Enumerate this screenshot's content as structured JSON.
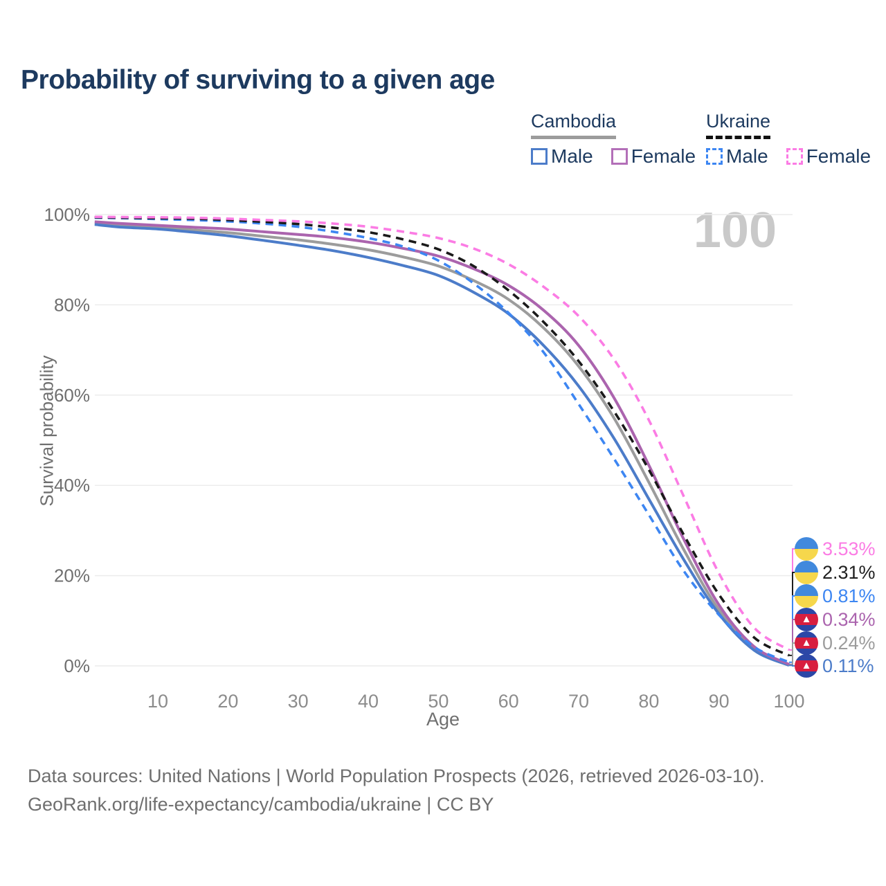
{
  "title": "Probability of surviving to a given age",
  "watermark": "100",
  "legend": {
    "groups": [
      {
        "name": "Cambodia",
        "underline_style": "solid",
        "underline_color": "#9c9c9c",
        "items": [
          {
            "label": "Male",
            "color": "#4c7cc9",
            "dashed": false
          },
          {
            "label": "Female",
            "color": "#b36fb8",
            "dashed": false
          }
        ]
      },
      {
        "name": "Ukraine",
        "underline_style": "dashed",
        "underline_color": "#111111",
        "items": [
          {
            "label": "Male",
            "color": "#3d86f2",
            "dashed": true
          },
          {
            "label": "Female",
            "color": "#fb7ce4",
            "dashed": true
          }
        ]
      }
    ]
  },
  "chart_data": {
    "type": "line",
    "title": "Probability of surviving to a given age",
    "xlabel": "Age",
    "ylabel": "Survival probability",
    "x_ticks": [
      10,
      20,
      30,
      40,
      50,
      60,
      70,
      80,
      90,
      100
    ],
    "y_ticks": [
      0,
      20,
      40,
      60,
      80,
      100
    ],
    "y_tick_suffix": "%",
    "xlim": [
      1,
      100
    ],
    "ylim": [
      0,
      100
    ],
    "grid": "horizontal",
    "gridline_color": "#ececec",
    "x": [
      1,
      5,
      10,
      15,
      20,
      25,
      30,
      35,
      40,
      45,
      50,
      55,
      60,
      65,
      70,
      75,
      80,
      85,
      90,
      95,
      100
    ],
    "series": [
      {
        "name": "Cambodia Both",
        "country": "Cambodia",
        "color": "#9c9c9c",
        "dashed": false,
        "values": [
          98.1,
          97.6,
          97.2,
          96.6,
          96.0,
          95.2,
          94.4,
          93.4,
          92.2,
          90.6,
          88.6,
          85.4,
          81.2,
          74.9,
          66.4,
          55.0,
          40.7,
          25.7,
          12.4,
          3.9,
          0.24
        ]
      },
      {
        "name": "Cambodia Male",
        "country": "Cambodia",
        "color": "#4c7cc9",
        "dashed": false,
        "values": [
          97.8,
          97.2,
          96.8,
          96.1,
          95.3,
          94.3,
          93.2,
          92.0,
          90.5,
          88.7,
          86.5,
          82.8,
          78.0,
          71.0,
          62.0,
          50.5,
          37.0,
          23.5,
          11.5,
          3.5,
          0.11
        ]
      },
      {
        "name": "Cambodia Female",
        "country": "Cambodia",
        "color": "#ab64ae",
        "dashed": false,
        "values": [
          98.4,
          98.0,
          97.6,
          97.2,
          96.8,
          96.2,
          95.6,
          94.9,
          93.9,
          92.5,
          90.8,
          88.0,
          84.3,
          78.8,
          71.0,
          59.5,
          44.5,
          28.0,
          13.5,
          4.3,
          0.34
        ]
      },
      {
        "name": "Ukraine Male",
        "country": "Ukraine",
        "color": "#3d86f2",
        "dashed": true,
        "values": [
          99.3,
          99.2,
          99.0,
          98.8,
          98.5,
          98.0,
          97.3,
          96.2,
          94.8,
          92.9,
          89.8,
          84.8,
          78.2,
          69.5,
          58.0,
          46.0,
          33.5,
          21.0,
          11.3,
          4.2,
          0.81
        ]
      },
      {
        "name": "Ukraine Both",
        "country": "Ukraine",
        "color": "#1a1a1a",
        "dashed": true,
        "values": [
          99.4,
          99.3,
          99.2,
          99.1,
          98.8,
          98.4,
          97.9,
          97.1,
          96.1,
          94.5,
          92.3,
          88.6,
          83.2,
          76.2,
          67.5,
          56.5,
          43.5,
          29.0,
          15.8,
          6.3,
          2.31
        ]
      },
      {
        "name": "Ukraine Female",
        "country": "Ukraine",
        "color": "#fb7ce4",
        "dashed": true,
        "values": [
          99.5,
          99.45,
          99.4,
          99.3,
          99.1,
          98.8,
          98.5,
          98.0,
          97.3,
          96.2,
          94.8,
          92.5,
          89.0,
          84.0,
          77.5,
          68.0,
          54.5,
          37.5,
          20.5,
          8.5,
          3.53
        ]
      }
    ],
    "end_labels": [
      {
        "value": "3.53%",
        "series": "Ukraine Female",
        "flag": "ukraine",
        "color": "#fb7ce4",
        "end_pct": 3.53
      },
      {
        "value": "2.31%",
        "series": "Ukraine Both",
        "flag": "ukraine",
        "color": "#1f1f1f",
        "end_pct": 2.31
      },
      {
        "value": "0.81%",
        "series": "Ukraine Male",
        "flag": "ukraine",
        "color": "#3d86f2",
        "end_pct": 0.81
      },
      {
        "value": "0.34%",
        "series": "Cambodia Female",
        "flag": "cambodia",
        "color": "#ab64ae",
        "end_pct": 0.34
      },
      {
        "value": "0.24%",
        "series": "Cambodia Both",
        "flag": "cambodia",
        "color": "#9c9c9c",
        "end_pct": 0.24
      },
      {
        "value": "0.11%",
        "series": "Cambodia Male",
        "flag": "cambodia",
        "color": "#4c7cc9",
        "end_pct": 0.11
      }
    ]
  },
  "footer": {
    "line1": "Data sources: United Nations | World Population Prospects (2026, retrieved 2026-03-10).",
    "line2": "GeoRank.org/life-expectancy/cambodia/ukraine | CC BY"
  }
}
